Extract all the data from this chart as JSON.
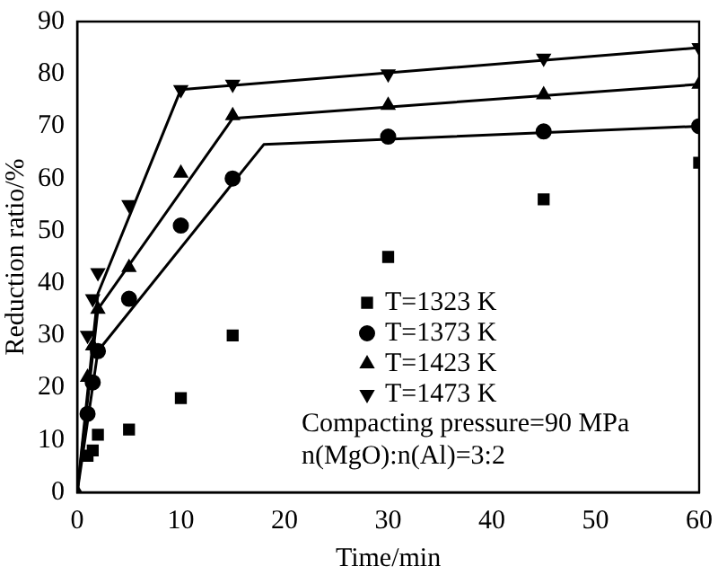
{
  "chart_data": {
    "type": "scatter",
    "xlabel": "Time/min",
    "ylabel": "Reduction ratio/%",
    "xlim": [
      0,
      60
    ],
    "xticks": [
      0,
      10,
      20,
      30,
      40,
      50,
      60
    ],
    "ylim": [
      0,
      90
    ],
    "yticks": [
      0,
      10,
      20,
      30,
      40,
      50,
      60,
      70,
      80,
      90
    ],
    "grid": false,
    "legend": "bottom right",
    "series": [
      {
        "type": "line",
        "marker": "none",
        "color": "#000000",
        "x": [
          0,
          2,
          18,
          60
        ],
        "values": [
          0,
          27,
          66.5,
          70
        ]
      },
      {
        "type": "line",
        "marker": "none",
        "color": "#000000",
        "x": [
          0,
          2,
          15,
          60
        ],
        "values": [
          0,
          35,
          71.5,
          78
        ]
      },
      {
        "type": "line",
        "marker": "none",
        "color": "#000000",
        "x": [
          0,
          2,
          10,
          60
        ],
        "values": [
          0,
          38,
          77,
          85
        ]
      },
      {
        "name": "T=1323 K",
        "marker": "square",
        "color": "#000000",
        "x": [
          1,
          1.5,
          2,
          5,
          10,
          15,
          30,
          45,
          60
        ],
        "values": [
          7,
          8,
          11,
          12,
          18,
          30,
          45,
          56,
          63
        ]
      },
      {
        "name": "T=1373 K",
        "marker": "circle",
        "color": "#000000",
        "x": [
          1,
          1.5,
          2,
          5,
          10,
          15,
          30,
          45,
          60
        ],
        "values": [
          15,
          21,
          27,
          37,
          51,
          60,
          68,
          69,
          70
        ]
      },
      {
        "name": "T=1423 K",
        "marker": "triangle",
        "color": "#000000",
        "x": [
          0,
          1,
          1.5,
          2,
          5,
          10,
          15,
          30,
          45,
          60
        ],
        "values": [
          0,
          22,
          28,
          35,
          43,
          61,
          72,
          74,
          76,
          78
        ]
      },
      {
        "name": "T=1473 K",
        "marker": "triangle-down",
        "color": "#000000",
        "x": [
          1,
          1.5,
          2,
          5,
          10,
          15,
          30,
          45,
          60
        ],
        "values": [
          30,
          37,
          42,
          55,
          77,
          78,
          80,
          83,
          85
        ]
      }
    ],
    "annotations": [
      "Compacting pressure=90 MPa",
      "n(MgO):n(Al)=3:2"
    ]
  }
}
